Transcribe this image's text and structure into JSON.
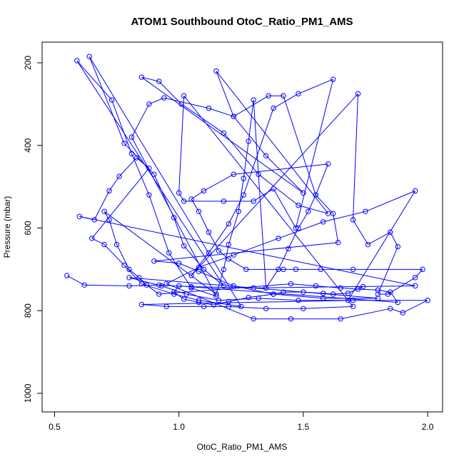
{
  "chart_data": {
    "type": "scatter",
    "title": "ATOM1 Southbound OtoC_Ratio_PM1_AMS",
    "xlabel": "OtoC_Ratio_PM1_AMS",
    "ylabel": "Pressure (mbar)",
    "xlim": [
      0.45,
      2.06
    ],
    "ylim": [
      1045,
      150
    ],
    "y_axis_inverted": true,
    "x_ticks": [
      0.5,
      1.0,
      1.5,
      2.0
    ],
    "x_tick_labels": [
      "0.5",
      "1.0",
      "1.5",
      "2.0"
    ],
    "y_ticks": [
      200,
      400,
      600,
      800,
      1000
    ],
    "y_tick_labels": [
      "200",
      "400",
      "600",
      "800",
      "1000"
    ],
    "grid": false,
    "legend": "none",
    "color": "#0000ff",
    "series": [
      {
        "style": "line-with-open-circles",
        "points": [
          [
            0.55,
            715
          ],
          [
            0.62,
            738
          ],
          [
            0.8,
            740
          ],
          [
            0.92,
            738
          ],
          [
            1.05,
            742
          ],
          [
            1.3,
            745
          ],
          [
            1.95,
            740
          ],
          [
            0.6,
            572
          ],
          [
            0.66,
            580
          ],
          [
            0.72,
            510
          ],
          [
            0.76,
            475
          ],
          [
            0.83,
            430
          ],
          [
            0.88,
            455
          ],
          [
            0.65,
            625
          ],
          [
            0.7,
            640
          ],
          [
            0.78,
            690
          ],
          [
            0.85,
            735
          ],
          [
            0.98,
            760
          ],
          [
            1.08,
            775
          ],
          [
            1.25,
            790
          ],
          [
            0.64,
            185
          ],
          [
            0.78,
            395
          ],
          [
            0.9,
            470
          ],
          [
            0.98,
            575
          ],
          [
            1.02,
            643
          ],
          [
            1.1,
            700
          ],
          [
            1.18,
            740
          ],
          [
            0.59,
            195
          ],
          [
            0.73,
            290
          ],
          [
            0.81,
            420
          ],
          [
            0.88,
            520
          ],
          [
            0.96,
            660
          ],
          [
            1.05,
            745
          ],
          [
            1.15,
            765
          ],
          [
            0.81,
            380
          ],
          [
            0.88,
            300
          ],
          [
            0.94,
            285
          ],
          [
            1.12,
            310
          ],
          [
            1.22,
            330
          ],
          [
            1.35,
            425
          ],
          [
            1.5,
            515
          ],
          [
            0.85,
            235
          ],
          [
            0.92,
            245
          ],
          [
            1.01,
            300
          ],
          [
            1.18,
            370
          ],
          [
            1.32,
            470
          ],
          [
            1.48,
            545
          ],
          [
            1.6,
            565
          ],
          [
            1.15,
            220
          ],
          [
            1.22,
            330
          ],
          [
            1.36,
            280
          ],
          [
            1.42,
            280
          ],
          [
            1.55,
            520
          ],
          [
            1.62,
            565
          ],
          [
            1.64,
            635
          ],
          [
            0.9,
            680
          ],
          [
            1.0,
            685
          ],
          [
            1.08,
            705
          ],
          [
            1.22,
            740
          ],
          [
            1.38,
            760
          ],
          [
            1.58,
            770
          ],
          [
            1.8,
            770
          ],
          [
            0.8,
            720
          ],
          [
            0.93,
            740
          ],
          [
            1.03,
            760
          ],
          [
            1.16,
            775
          ],
          [
            1.32,
            770
          ],
          [
            1.48,
            775
          ],
          [
            1.68,
            775
          ],
          [
            1.95,
            510
          ],
          [
            1.75,
            560
          ],
          [
            1.58,
            585
          ],
          [
            1.4,
            625
          ],
          [
            1.22,
            665
          ],
          [
            1.08,
            695
          ],
          [
            0.95,
            735
          ],
          [
            1.3,
            820
          ],
          [
            1.45,
            820
          ],
          [
            1.65,
            820
          ],
          [
            1.85,
            795
          ],
          [
            1.9,
            805
          ],
          [
            2.0,
            775
          ],
          [
            1.7,
            775
          ],
          [
            0.85,
            785
          ],
          [
            0.95,
            790
          ],
          [
            1.1,
            790
          ],
          [
            1.2,
            790
          ],
          [
            1.35,
            795
          ],
          [
            1.5,
            795
          ],
          [
            1.7,
            790
          ],
          [
            1.02,
            280
          ],
          [
            1.0,
            515
          ],
          [
            1.02,
            535
          ],
          [
            1.18,
            535
          ],
          [
            1.3,
            535
          ],
          [
            1.38,
            505
          ],
          [
            1.47,
            600
          ],
          [
            1.62,
            240
          ],
          [
            1.48,
            275
          ],
          [
            1.38,
            310
          ],
          [
            1.26,
            520
          ],
          [
            1.2,
            590
          ],
          [
            1.12,
            660
          ],
          [
            1.05,
            715
          ],
          [
            1.72,
            275
          ],
          [
            1.7,
            580
          ],
          [
            1.76,
            640
          ],
          [
            1.85,
            610
          ],
          [
            1.88,
            645
          ],
          [
            1.8,
            760
          ],
          [
            1.84,
            760
          ],
          [
            1.95,
            720
          ],
          [
            1.98,
            700
          ],
          [
            1.7,
            700
          ],
          [
            1.57,
            700
          ],
          [
            1.47,
            700
          ],
          [
            1.42,
            700
          ],
          [
            1.27,
            700
          ],
          [
            1.2,
            675
          ],
          [
            1.16,
            655
          ],
          [
            1.12,
            610
          ],
          [
            1.08,
            560
          ],
          [
            1.05,
            530
          ],
          [
            1.1,
            510
          ],
          [
            1.22,
            470
          ],
          [
            1.6,
            445
          ],
          [
            1.55,
            520
          ],
          [
            1.52,
            560
          ],
          [
            1.48,
            600
          ],
          [
            1.44,
            650
          ],
          [
            1.4,
            700
          ],
          [
            1.35,
            745
          ],
          [
            1.3,
            290
          ],
          [
            1.28,
            390
          ],
          [
            1.26,
            480
          ],
          [
            1.24,
            560
          ],
          [
            1.2,
            640
          ],
          [
            1.18,
            700
          ],
          [
            1.15,
            760
          ],
          [
            0.7,
            560
          ],
          [
            0.72,
            580
          ],
          [
            0.75,
            640
          ],
          [
            0.8,
            700
          ],
          [
            0.84,
            720
          ],
          [
            0.87,
            738
          ],
          [
            0.92,
            760
          ],
          [
            1.45,
            735
          ],
          [
            1.55,
            740
          ],
          [
            1.65,
            745
          ],
          [
            1.72,
            748
          ],
          [
            1.8,
            750
          ],
          [
            1.85,
            755
          ],
          [
            1.88,
            780
          ],
          [
            1.0,
            740
          ],
          [
            0.98,
            755
          ],
          [
            1.02,
            772
          ],
          [
            1.08,
            780
          ],
          [
            1.14,
            786
          ],
          [
            1.2,
            778
          ],
          [
            1.28,
            768
          ],
          [
            1.38,
            760
          ],
          [
            1.42,
            755
          ],
          [
            1.5,
            755
          ],
          [
            1.58,
            758
          ],
          [
            1.62,
            760
          ],
          [
            1.68,
            758
          ],
          [
            1.74,
            742
          ]
        ]
      }
    ]
  }
}
